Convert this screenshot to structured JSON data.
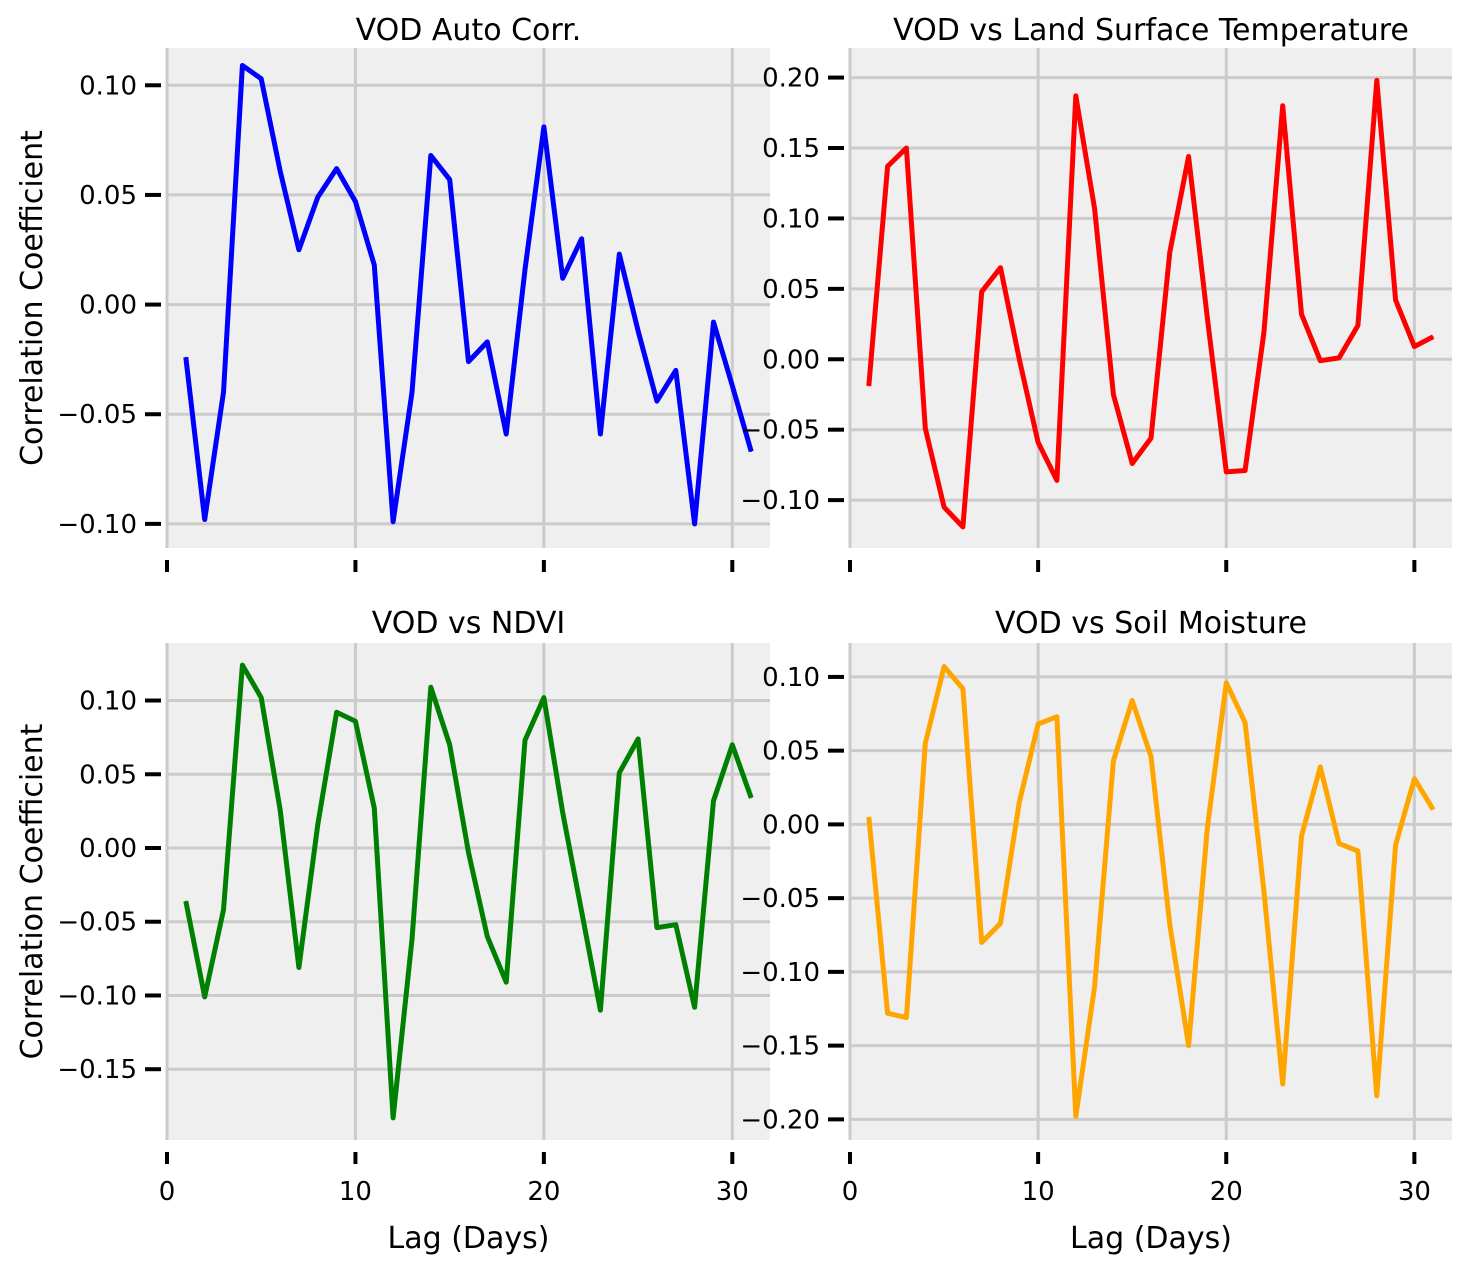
{
  "chart_data": [
    {
      "type": "line",
      "title": "VOD Auto Corr.",
      "xlabel": "",
      "ylabel": "Correlation Coefficient",
      "color": "#0000ff",
      "xlim": [
        0,
        32
      ],
      "ylim": [
        -0.111,
        0.117
      ],
      "xticks": [
        0,
        10,
        20,
        30
      ],
      "xtick_labels_visible": false,
      "yticks": [
        -0.1,
        -0.05,
        0.0,
        0.05,
        0.1
      ],
      "ytick_labels": [
        "−0.10",
        "−0.05",
        "0.00",
        "0.05",
        "0.10"
      ],
      "grid": true,
      "x": [
        1,
        2,
        3,
        4,
        5,
        6,
        7,
        8,
        9,
        10,
        11,
        12,
        13,
        14,
        15,
        16,
        17,
        18,
        19,
        20,
        21,
        22,
        23,
        24,
        25,
        26,
        27,
        28,
        29,
        30,
        31
      ],
      "values": [
        -0.024,
        -0.098,
        -0.04,
        0.109,
        0.103,
        0.061,
        0.025,
        0.049,
        0.062,
        0.047,
        0.018,
        -0.099,
        -0.04,
        0.068,
        0.057,
        -0.026,
        -0.017,
        -0.059,
        0.016,
        0.081,
        0.012,
        0.03,
        -0.059,
        0.023,
        -0.012,
        -0.044,
        -0.03,
        -0.1,
        -0.008,
        -0.037,
        -0.067
      ]
    },
    {
      "type": "line",
      "title": "VOD vs Land Surface Temperature",
      "xlabel": "",
      "ylabel": "",
      "color": "#ff0000",
      "xlim": [
        0,
        32
      ],
      "ylim": [
        -0.134,
        0.221
      ],
      "xticks": [
        0,
        10,
        20,
        30
      ],
      "xtick_labels_visible": false,
      "yticks": [
        -0.1,
        -0.05,
        0.0,
        0.05,
        0.1,
        0.15,
        0.2
      ],
      "ytick_labels": [
        "−0.10",
        "−0.05",
        "0.00",
        "0.05",
        "0.10",
        "0.15",
        "0.20"
      ],
      "grid": true,
      "x": [
        1,
        2,
        3,
        4,
        5,
        6,
        7,
        8,
        9,
        10,
        11,
        12,
        13,
        14,
        15,
        16,
        17,
        18,
        19,
        20,
        21,
        22,
        23,
        24,
        25,
        26,
        27,
        28,
        29,
        30,
        31
      ],
      "values": [
        -0.019,
        0.137,
        0.15,
        -0.049,
        -0.105,
        -0.119,
        0.048,
        0.065,
        0.0,
        -0.059,
        -0.086,
        0.187,
        0.107,
        -0.025,
        -0.074,
        -0.056,
        0.076,
        0.144,
        0.029,
        -0.08,
        -0.079,
        0.019,
        0.18,
        0.032,
        -0.001,
        0.001,
        0.024,
        0.198,
        0.042,
        0.009,
        0.016
      ]
    },
    {
      "type": "line",
      "title": "VOD vs NDVI",
      "xlabel": "Lag (Days)",
      "ylabel": "Correlation Coefficient",
      "color": "#008000",
      "xlim": [
        0,
        32
      ],
      "ylim": [
        -0.198,
        0.139
      ],
      "xticks": [
        0,
        10,
        20,
        30
      ],
      "xtick_labels_visible": true,
      "xtick_labels": [
        "0",
        "10",
        "20",
        "30"
      ],
      "yticks": [
        -0.15,
        -0.1,
        -0.05,
        0.0,
        0.05,
        0.1
      ],
      "ytick_labels": [
        "−0.15",
        "−0.10",
        "−0.05",
        "0.00",
        "0.05",
        "0.10"
      ],
      "grid": true,
      "x": [
        1,
        2,
        3,
        4,
        5,
        6,
        7,
        8,
        9,
        10,
        11,
        12,
        13,
        14,
        15,
        16,
        17,
        18,
        19,
        20,
        21,
        22,
        23,
        24,
        25,
        26,
        27,
        28,
        29,
        30,
        31
      ],
      "values": [
        -0.036,
        -0.101,
        -0.042,
        0.124,
        0.102,
        0.026,
        -0.081,
        0.016,
        0.092,
        0.086,
        0.027,
        -0.183,
        -0.062,
        0.109,
        0.07,
        -0.003,
        -0.06,
        -0.091,
        0.073,
        0.102,
        0.024,
        -0.043,
        -0.11,
        0.051,
        0.074,
        -0.054,
        -0.052,
        -0.108,
        0.032,
        0.07,
        0.034
      ]
    },
    {
      "type": "line",
      "title": "VOD vs Soil Moisture",
      "xlabel": "Lag (Days)",
      "ylabel": "",
      "color": "#ffa500",
      "xlim": [
        0,
        32
      ],
      "ylim": [
        -0.214,
        0.123
      ],
      "xticks": [
        0,
        10,
        20,
        30
      ],
      "xtick_labels_visible": true,
      "xtick_labels": [
        "0",
        "10",
        "20",
        "30"
      ],
      "yticks": [
        -0.2,
        -0.15,
        -0.1,
        -0.05,
        0.0,
        0.05,
        0.1
      ],
      "ytick_labels": [
        "−0.20",
        "−0.15",
        "−0.10",
        "−0.05",
        "0.00",
        "0.05",
        "0.10"
      ],
      "grid": true,
      "x": [
        1,
        2,
        3,
        4,
        5,
        6,
        7,
        8,
        9,
        10,
        11,
        12,
        13,
        14,
        15,
        16,
        17,
        18,
        19,
        20,
        21,
        22,
        23,
        24,
        25,
        26,
        27,
        28,
        29,
        30,
        31
      ],
      "values": [
        0.005,
        -0.128,
        -0.131,
        0.055,
        0.107,
        0.092,
        -0.08,
        -0.067,
        0.015,
        0.068,
        0.073,
        -0.198,
        -0.11,
        0.043,
        0.084,
        0.046,
        -0.068,
        -0.15,
        -0.002,
        0.096,
        0.069,
        -0.045,
        -0.176,
        -0.008,
        0.039,
        -0.013,
        -0.018,
        -0.184,
        -0.014,
        0.031,
        0.01
      ]
    }
  ]
}
